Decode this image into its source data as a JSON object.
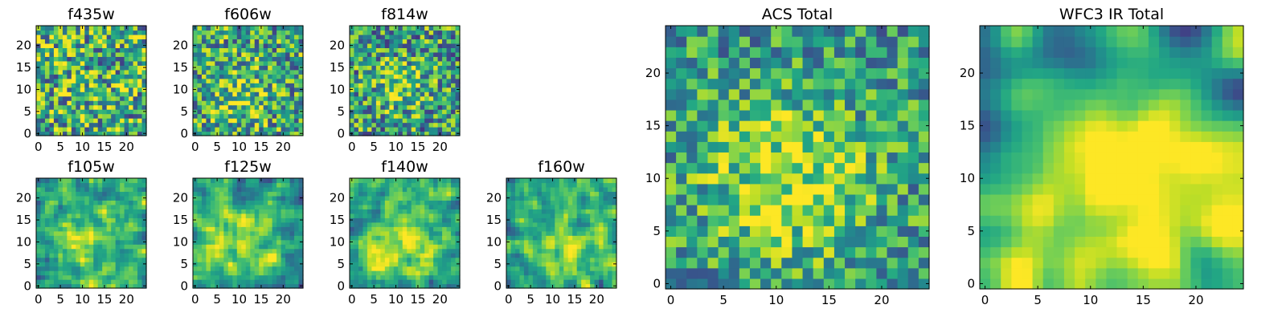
{
  "chart_data": {
    "type": "heatmap",
    "colormap": "viridis",
    "grid_size": 25,
    "panels": [
      {
        "id": "f435w",
        "title": "f435w",
        "xlim": [
          0,
          24
        ],
        "ylim": [
          0,
          24
        ],
        "xticks": [
          "0",
          "5",
          "10",
          "15",
          "20"
        ],
        "yticks": [
          "0",
          "5",
          "10",
          "15",
          "20"
        ],
        "pattern": "noise",
        "seed": 11,
        "mean": 0.62,
        "noise": 0.55,
        "blob": {
          "cx": 10,
          "cy": 9,
          "r": 5,
          "amp": 0.05
        }
      },
      {
        "id": "f606w",
        "title": "f606w",
        "xlim": [
          0,
          24
        ],
        "ylim": [
          0,
          24
        ],
        "xticks": [
          "0",
          "5",
          "10",
          "15",
          "20"
        ],
        "yticks": [
          "0",
          "5",
          "10",
          "15",
          "20"
        ],
        "pattern": "noise",
        "seed": 23,
        "mean": 0.58,
        "noise": 0.5,
        "blob": {
          "cx": 10,
          "cy": 9,
          "r": 5,
          "amp": 0.2
        }
      },
      {
        "id": "f814w",
        "title": "f814w",
        "xlim": [
          0,
          24
        ],
        "ylim": [
          0,
          24
        ],
        "xticks": [
          "0",
          "5",
          "10",
          "15",
          "20"
        ],
        "yticks": [
          "0",
          "5",
          "10",
          "15",
          "20"
        ],
        "pattern": "noise",
        "seed": 37,
        "mean": 0.55,
        "noise": 0.5,
        "blob": {
          "cx": 11,
          "cy": 11,
          "r": 4,
          "amp": 0.25
        }
      },
      {
        "id": "f105w",
        "title": "f105w",
        "xlim": [
          0,
          24
        ],
        "ylim": [
          0,
          24
        ],
        "xticks": [
          "0",
          "5",
          "10",
          "15",
          "20"
        ],
        "yticks": [
          "0",
          "5",
          "10",
          "15",
          "20"
        ],
        "pattern": "smooth",
        "seed": 41,
        "mean": 0.55,
        "noise": 0.45,
        "blob": {
          "cx": 11,
          "cy": 10,
          "r": 6,
          "amp": 0.3
        }
      },
      {
        "id": "f125w",
        "title": "f125w",
        "xlim": [
          0,
          24
        ],
        "ylim": [
          0,
          24
        ],
        "xticks": [
          "0",
          "5",
          "10",
          "15",
          "20"
        ],
        "yticks": [
          "0",
          "5",
          "10",
          "15",
          "20"
        ],
        "pattern": "smooth",
        "seed": 53,
        "mean": 0.58,
        "noise": 0.4,
        "blob": {
          "cx": 11,
          "cy": 10,
          "r": 6,
          "amp": 0.25
        }
      },
      {
        "id": "f140w",
        "title": "f140w",
        "xlim": [
          0,
          24
        ],
        "ylim": [
          0,
          24
        ],
        "xticks": [
          "0",
          "5",
          "10",
          "15",
          "20"
        ],
        "yticks": [
          "0",
          "5",
          "10",
          "15",
          "20"
        ],
        "pattern": "smooth",
        "seed": 67,
        "mean": 0.6,
        "noise": 0.42,
        "blob": {
          "cx": 11,
          "cy": 10,
          "r": 6,
          "amp": 0.3
        }
      },
      {
        "id": "f160w",
        "title": "f160w",
        "xlim": [
          0,
          24
        ],
        "ylim": [
          0,
          24
        ],
        "xticks": [
          "0",
          "5",
          "10",
          "15",
          "20"
        ],
        "yticks": [
          "0",
          "5",
          "10",
          "15",
          "20"
        ],
        "pattern": "smooth",
        "seed": 79,
        "mean": 0.58,
        "noise": 0.42,
        "blob": {
          "cx": 13,
          "cy": 8,
          "r": 6,
          "amp": 0.3
        }
      },
      {
        "id": "acs-total",
        "title": "ACS Total",
        "xlim": [
          0,
          24
        ],
        "ylim": [
          0,
          24
        ],
        "xticks": [
          "0",
          "5",
          "10",
          "15",
          "20"
        ],
        "yticks": [
          "0",
          "5",
          "10",
          "15",
          "20"
        ],
        "pattern": "noise",
        "seed": 97,
        "mean": 0.52,
        "noise": 0.38,
        "blob": {
          "cx": 11,
          "cy": 10,
          "r": 6,
          "amp": 0.35
        }
      },
      {
        "id": "wfc3-ir-total",
        "title": "WFC3 IR Total",
        "xlim": [
          0,
          24
        ],
        "ylim": [
          0,
          24
        ],
        "xticks": [
          "0",
          "5",
          "10",
          "15",
          "20"
        ],
        "yticks": [
          "0",
          "5",
          "10",
          "15",
          "20"
        ],
        "pattern": "gradient",
        "seed": 113,
        "mean": 0.55,
        "noise": 0.22,
        "blob": {
          "cx": 14,
          "cy": 10,
          "r": 8,
          "amp": 0.45
        }
      }
    ]
  }
}
